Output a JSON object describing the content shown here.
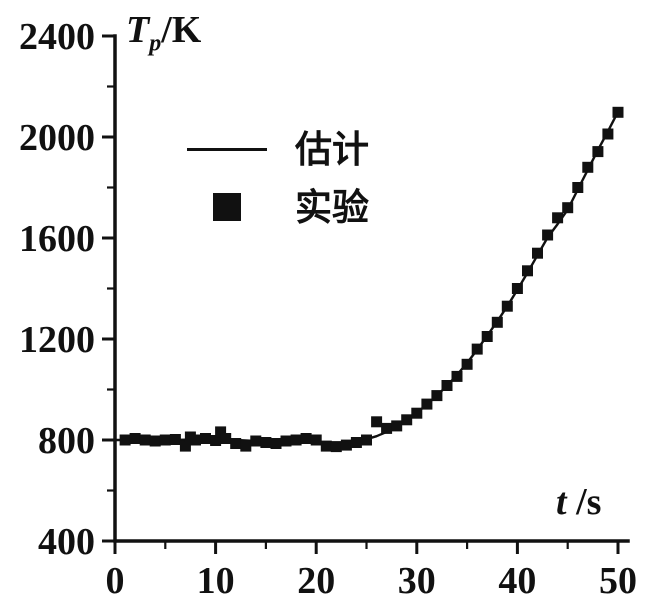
{
  "figure": {
    "background": "#ffffff",
    "ink_color": "#111111"
  },
  "labels": {
    "y_symbol": "T",
    "y_subscript": "p",
    "y_unit": "/K",
    "x_symbol": "t",
    "x_unit": " /s"
  },
  "chart_data": {
    "type": "line",
    "title": "",
    "xlabel": "t/s",
    "ylabel": "Tp/K",
    "xlim": [
      0,
      50
    ],
    "ylim": [
      400,
      2400
    ],
    "x_ticks": [
      0,
      10,
      20,
      30,
      40,
      50
    ],
    "y_ticks": [
      400,
      800,
      1200,
      1600,
      2000,
      2400
    ],
    "x_minor_ticks": [
      5,
      15,
      25,
      35,
      45
    ],
    "y_minor_ticks": [
      600,
      1000,
      1400,
      1800,
      2200
    ],
    "grid": false,
    "legend_position": "upper-left-inside",
    "series": [
      {
        "name": "估计",
        "type": "line",
        "marker": "line",
        "color": "#111111",
        "x": [
          0,
          2,
          4,
          6,
          8,
          10,
          12,
          14,
          16,
          18,
          20,
          22,
          24,
          25,
          26,
          27,
          28,
          29,
          30,
          31,
          32,
          33,
          34,
          35,
          36,
          37,
          38,
          39,
          40,
          41,
          42,
          43,
          44,
          45,
          46,
          47,
          48,
          49,
          50
        ],
        "y": [
          800,
          800,
          800,
          800,
          802,
          805,
          800,
          796,
          794,
          793,
          790,
          788,
          795,
          803,
          815,
          832,
          852,
          878,
          908,
          940,
          976,
          1015,
          1058,
          1105,
          1158,
          1213,
          1270,
          1330,
          1395,
          1462,
          1532,
          1602,
          1655,
          1712,
          1792,
          1870,
          1948,
          2022,
          2100
        ]
      },
      {
        "name": "实验",
        "type": "scatter",
        "marker": "square",
        "color": "#111111",
        "x": [
          1,
          2,
          3,
          4,
          5,
          6,
          7,
          7.5,
          8,
          9,
          10,
          10.5,
          11,
          12,
          13,
          14,
          15,
          16,
          17,
          18,
          19,
          20,
          21,
          22,
          23,
          24,
          25,
          26,
          27,
          28,
          29,
          30,
          31,
          32,
          33,
          34,
          35,
          36,
          37,
          38,
          39,
          40,
          41,
          42,
          43,
          44,
          45,
          46,
          47,
          48,
          49,
          50
        ],
        "y": [
          800,
          806,
          800,
          796,
          800,
          802,
          776,
          812,
          800,
          806,
          798,
          832,
          806,
          786,
          776,
          796,
          790,
          786,
          796,
          800,
          806,
          800,
          776,
          774,
          780,
          790,
          800,
          872,
          846,
          856,
          880,
          906,
          942,
          976,
          1016,
          1052,
          1100,
          1160,
          1210,
          1266,
          1330,
          1400,
          1470,
          1540,
          1612,
          1680,
          1720,
          1800,
          1880,
          1942,
          2012,
          2098
        ]
      }
    ]
  }
}
